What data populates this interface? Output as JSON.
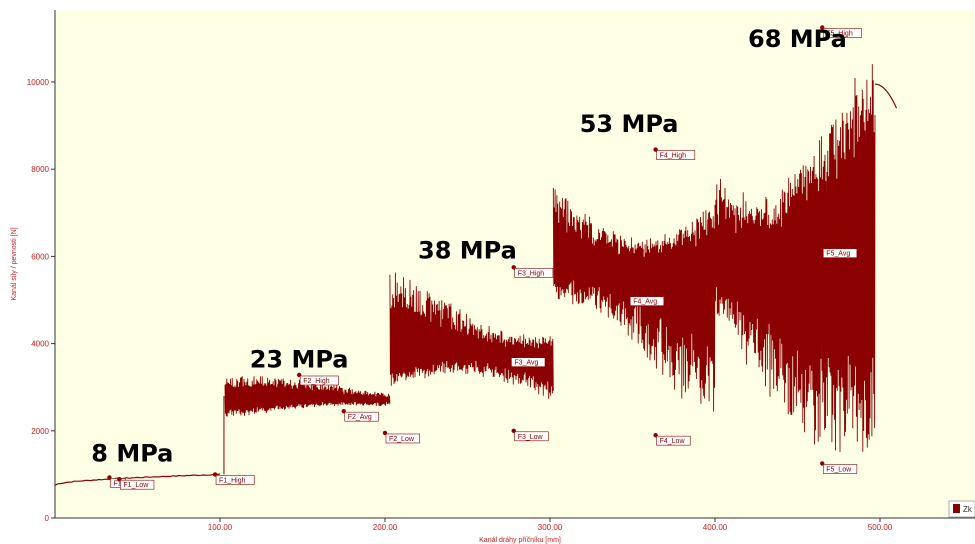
{
  "chart_data": {
    "type": "line",
    "title": "",
    "xlabel": "Kanál dráhy příčníku [mm]",
    "ylabel": "Kanál síly / pevnosti [N]",
    "xlim": [
      0,
      550
    ],
    "ylim": [
      0,
      11500
    ],
    "x_ticks": [
      {
        "value": 100,
        "label": "100.00"
      },
      {
        "value": 200,
        "label": "200.00"
      },
      {
        "value": 300,
        "label": "300.00"
      },
      {
        "value": 400,
        "label": "400.00"
      },
      {
        "value": 500,
        "label": "500.00"
      }
    ],
    "y_ticks": [
      {
        "value": 0,
        "label": "0"
      },
      {
        "value": 2000,
        "label": "2000"
      },
      {
        "value": 4000,
        "label": "4000"
      },
      {
        "value": 6000,
        "label": "6000"
      },
      {
        "value": 8000,
        "label": "8000"
      },
      {
        "value": 10000,
        "label": "10000"
      }
    ],
    "grid": false,
    "background_color": "#ffffe6",
    "series_color": "#8b0000",
    "series": [
      {
        "name": "Zk",
        "segments": [
          {
            "x_start": 0,
            "x_end": 100,
            "low": 750,
            "high": 1000,
            "mean": 880,
            "kind": "drift"
          },
          {
            "x_start": 103,
            "x_end": 203,
            "low": 2200,
            "high": 3250,
            "mean": 2700,
            "kind": "oscillation"
          },
          {
            "x_start": 203,
            "x_end": 302,
            "low": 2050,
            "high": 5750,
            "mean": 3700,
            "kind": "oscillation"
          },
          {
            "x_start": 302,
            "x_end": 400,
            "low": 2000,
            "high": 8500,
            "mean": 5800,
            "kind": "oscillation"
          },
          {
            "x_start": 400,
            "x_end": 497,
            "low": 1400,
            "high": 11200,
            "mean": 6200,
            "kind": "oscillation"
          },
          {
            "x_start": 497,
            "x_end": 510,
            "low": 9400,
            "high": 9950,
            "mean": 9800,
            "kind": "tail"
          }
        ]
      }
    ],
    "markers": [
      {
        "label": "F1",
        "x": 33,
        "y": 930
      },
      {
        "label": "F1_Low",
        "x": 39,
        "y": 890
      },
      {
        "label": "F1_High",
        "x": 97,
        "y": 1000
      },
      {
        "label": "F2_High",
        "x": 148,
        "y": 3280
      },
      {
        "label": "F2_Avg",
        "x": 175,
        "y": 2450
      },
      {
        "label": "F2_Low",
        "x": 200,
        "y": 1950
      },
      {
        "label": "F3_High",
        "x": 278,
        "y": 5750
      },
      {
        "label": "F3_Avg",
        "x": 276,
        "y": 3700
      },
      {
        "label": "F3_Low",
        "x": 278,
        "y": 2000
      },
      {
        "label": "F4_High",
        "x": 364,
        "y": 8450
      },
      {
        "label": "F4_Avg",
        "x": 348,
        "y": 5100
      },
      {
        "label": "F4_Low",
        "x": 364,
        "y": 1900
      },
      {
        "label": "F5_High",
        "x": 465,
        "y": 11250
      },
      {
        "label": "F5_Avg",
        "x": 465,
        "y": 6200
      },
      {
        "label": "F5_Low",
        "x": 465,
        "y": 1250
      }
    ],
    "annotations": [
      {
        "text": "8 MPa",
        "x": 22,
        "y": 1300
      },
      {
        "text": "23 MPa",
        "x": 118,
        "y": 3450
      },
      {
        "text": "38 MPa",
        "x": 220,
        "y": 5950
      },
      {
        "text": "53 MPa",
        "x": 318,
        "y": 8850
      },
      {
        "text": "68 MPa",
        "x": 420,
        "y": 10800
      }
    ],
    "legend": {
      "position": "bottom-right",
      "entries": [
        "Zk"
      ]
    }
  }
}
